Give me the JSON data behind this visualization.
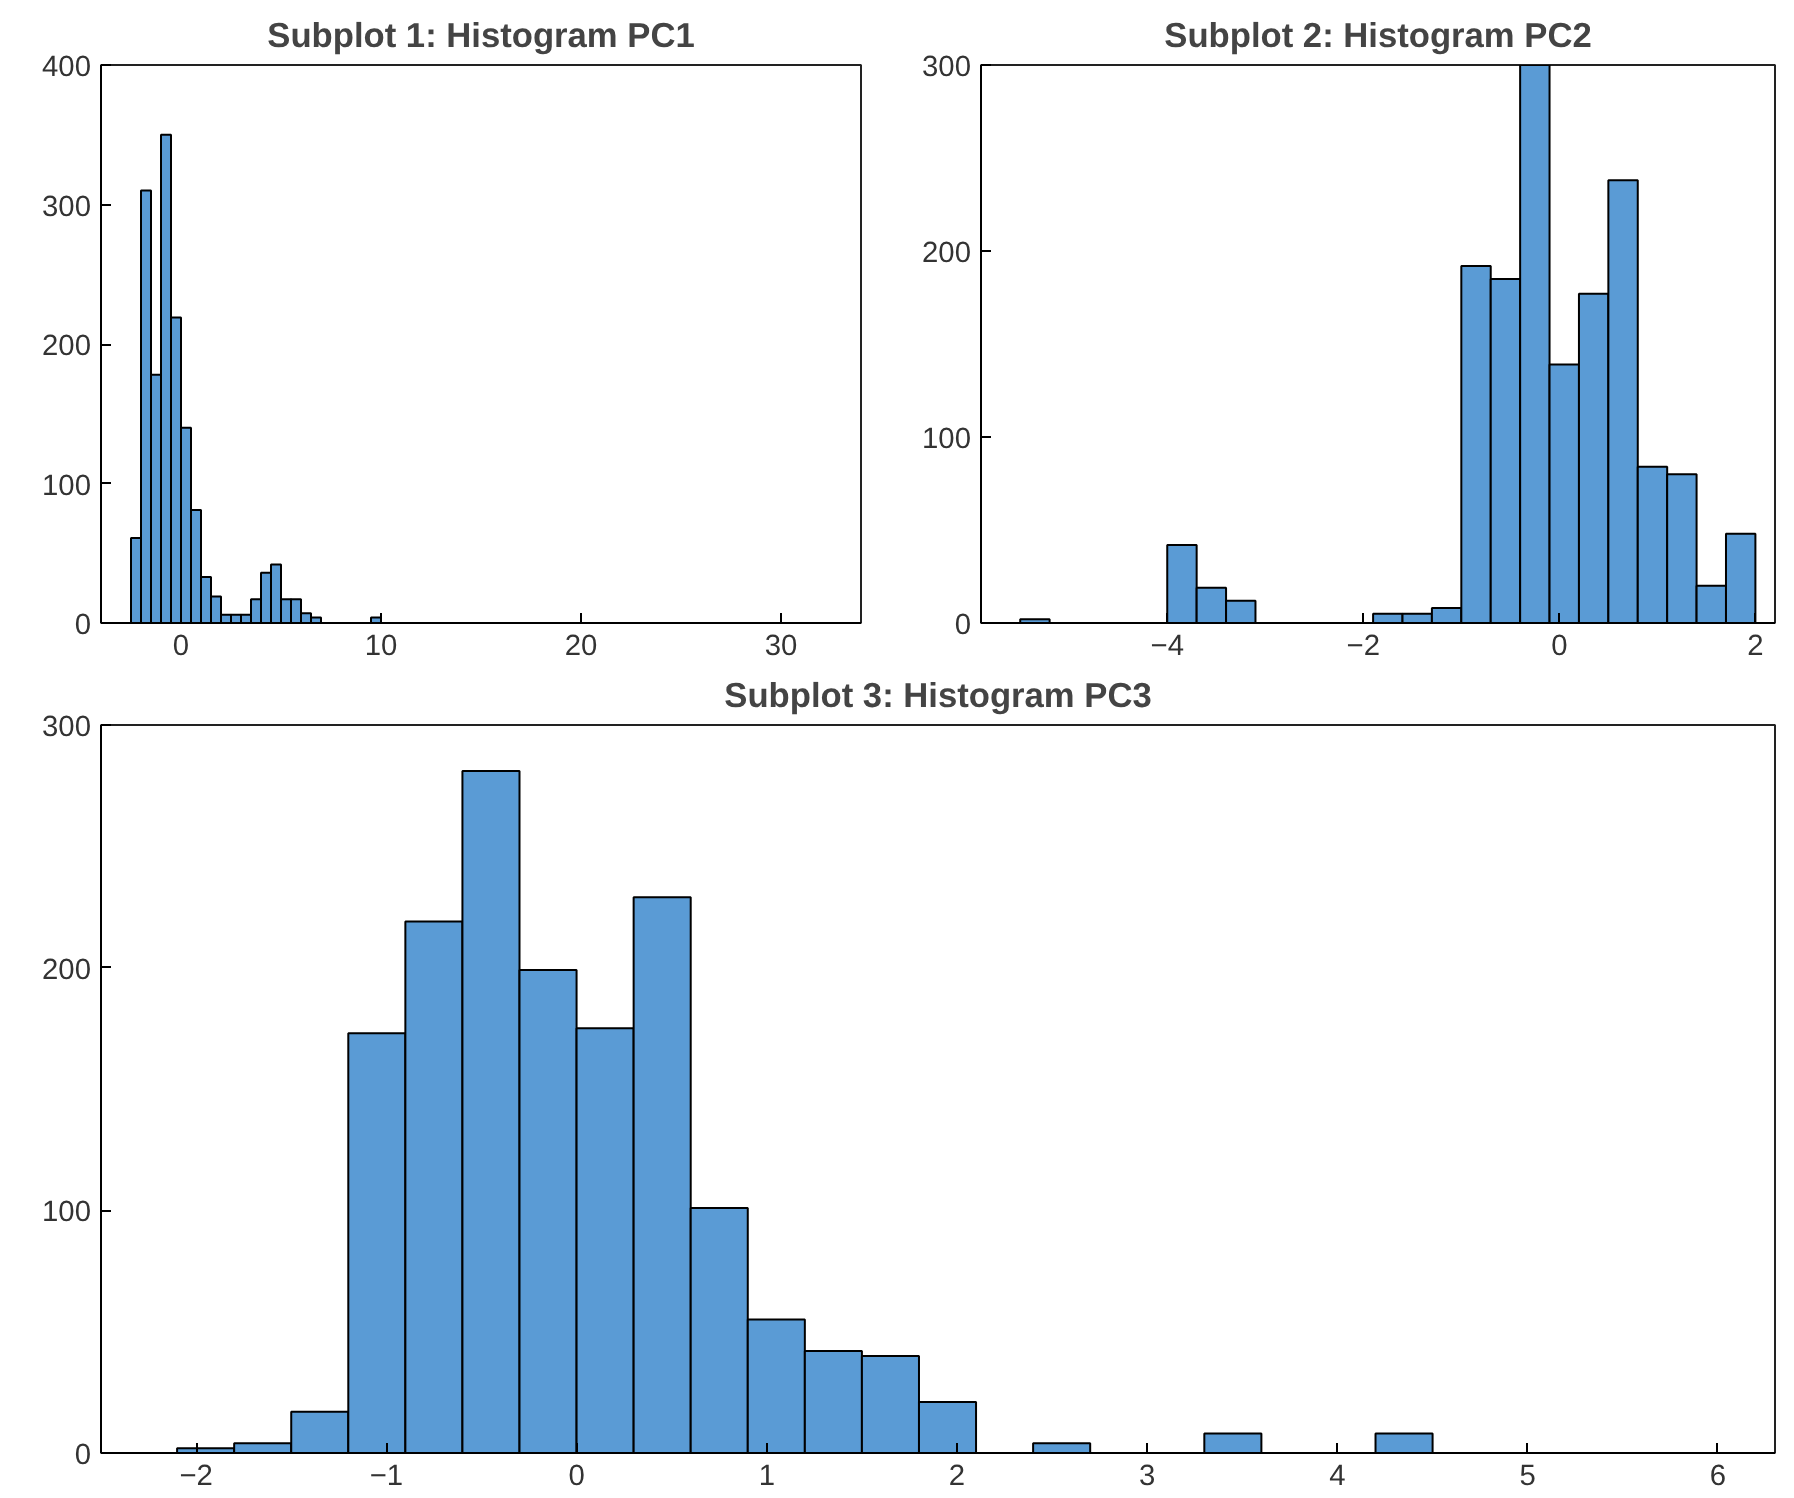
{
  "chart_data": [
    {
      "type": "histogram",
      "title": "Subplot 1: Histogram PC1",
      "color": "#5a9bd5",
      "bins": [
        -2.5,
        -2.0,
        -1.5,
        -1.0,
        -0.5,
        0.0,
        0.5,
        1.0,
        1.5,
        2.0,
        2.5,
        3.0,
        3.5,
        4.0,
        4.5,
        5.0,
        5.5,
        6.0,
        6.5,
        7.0,
        7.5,
        8.0,
        8.5,
        9.0,
        9.5,
        10.0
      ],
      "values": [
        61,
        310,
        178,
        350,
        219,
        140,
        81,
        33,
        19,
        6,
        6,
        6,
        17,
        36,
        42,
        17,
        17,
        7,
        4,
        0,
        0,
        0,
        0,
        0,
        4
      ],
      "xlim": [
        -4,
        34
      ],
      "xticks": [
        0,
        10,
        20,
        30
      ],
      "ylim": [
        0,
        400
      ],
      "yticks": [
        0,
        100,
        200,
        300,
        400
      ]
    },
    {
      "type": "histogram",
      "title": "Subplot 2: Histogram PC2",
      "color": "#5a9bd5",
      "bins": [
        -5.5,
        -5.2,
        -4.9,
        -4.6,
        -4.3,
        -4.0,
        -3.7,
        -3.4,
        -3.1,
        -2.8,
        -2.5,
        -2.2,
        -1.9,
        -1.6,
        -1.3,
        -1.0,
        -0.7,
        -0.4,
        -0.1,
        0.2,
        0.5,
        0.8,
        1.1,
        1.4,
        1.7,
        2.0
      ],
      "values": [
        2,
        0,
        0,
        0,
        0,
        42,
        19,
        12,
        0,
        0,
        0,
        0,
        5,
        5,
        8,
        192,
        185,
        300,
        139,
        177,
        238,
        84,
        80,
        20,
        48
      ],
      "xlim": [
        -5.9,
        2.2
      ],
      "xticks": [
        -4,
        -2,
        0,
        2
      ],
      "ylim": [
        0,
        300
      ],
      "yticks": [
        0,
        100,
        200,
        300
      ]
    },
    {
      "type": "histogram",
      "title": "Subplot 3: Histogram PC3",
      "color": "#5a9bd5",
      "bins": [
        -2.1,
        -1.8,
        -1.5,
        -1.2,
        -0.9,
        -0.6,
        -0.3,
        0.0,
        0.3,
        0.6,
        0.9,
        1.2,
        1.5,
        1.8,
        2.1,
        2.4,
        2.7,
        3.0,
        3.3,
        3.6,
        3.9,
        4.2,
        4.5
      ],
      "values": [
        2,
        4,
        17,
        173,
        219,
        281,
        199,
        175,
        229,
        101,
        55,
        42,
        40,
        21,
        0,
        4,
        0,
        0,
        8,
        0,
        0,
        8
      ],
      "xlim": [
        -2.5,
        6.3
      ],
      "xticks": [
        -2,
        -1,
        0,
        1,
        2,
        3,
        4,
        5,
        6
      ],
      "ylim": [
        0,
        300
      ],
      "yticks": [
        0,
        100,
        200,
        300
      ]
    }
  ]
}
